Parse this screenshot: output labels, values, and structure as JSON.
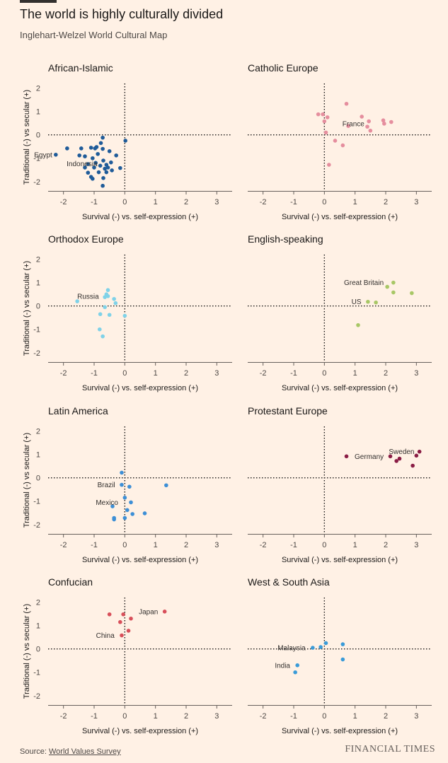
{
  "title": "The world is highly culturally divided",
  "subtitle": "Inglehart-Welzel World Cultural Map",
  "source_label": "Source:",
  "source_link": "World Values Survey",
  "logo": "FINANCIAL TIMES",
  "chart_data": [
    {
      "type": "scatter",
      "title": "African-Islamic",
      "xlabel": "Survival (-) vs. self-expression (+)",
      "ylabel": "Traditional (-) vs secular (+)",
      "xlim": [
        -2.5,
        3.5
      ],
      "ylim": [
        -2.4,
        2.2
      ],
      "xticks": [
        -2,
        -1,
        0,
        1,
        2,
        3
      ],
      "yticks": [
        -2,
        -1,
        0,
        1,
        2
      ],
      "color": "#1f5b99",
      "points": [
        [
          0.02,
          -0.25
        ],
        [
          -0.72,
          -0.12
        ],
        [
          -0.78,
          -0.35
        ],
        [
          -0.92,
          -0.52
        ],
        [
          -0.97,
          -0.58
        ],
        [
          -1.1,
          -0.55
        ],
        [
          -1.3,
          -0.92
        ],
        [
          -1.42,
          -0.58
        ],
        [
          -1.48,
          -0.88
        ],
        [
          -1.88,
          -0.58
        ],
        [
          -2.25,
          -0.85
        ],
        [
          -0.28,
          -0.88
        ],
        [
          -0.72,
          -0.6
        ],
        [
          -0.5,
          -0.7
        ],
        [
          -0.88,
          -0.82
        ],
        [
          -1.05,
          -1.0
        ],
        [
          -0.95,
          -1.2
        ],
        [
          -0.7,
          -1.1
        ],
        [
          -0.45,
          -1.18
        ],
        [
          -0.6,
          -1.28
        ],
        [
          -0.8,
          -1.32
        ],
        [
          -1.2,
          -1.25
        ],
        [
          -1.3,
          -1.4
        ],
        [
          -1.0,
          -1.4
        ],
        [
          -0.65,
          -1.45
        ],
        [
          -0.55,
          -1.4
        ],
        [
          -0.42,
          -1.52
        ],
        [
          -0.85,
          -1.6
        ],
        [
          -0.6,
          -1.6
        ],
        [
          -0.15,
          -1.42
        ],
        [
          -1.2,
          -1.62
        ],
        [
          -1.1,
          -1.8
        ],
        [
          -1.05,
          -1.88
        ],
        [
          -0.7,
          -1.85
        ],
        [
          -0.72,
          -2.18
        ]
      ],
      "labels": [
        {
          "text": "Egypt",
          "x": -2.25,
          "y": -0.85,
          "pos": "left"
        },
        {
          "text": "Indonesia",
          "x": -0.78,
          "y": -1.23,
          "pos": "left"
        }
      ]
    },
    {
      "type": "scatter",
      "title": "Catholic Europe",
      "xlabel": "Survival (-) vs. self-expression (+)",
      "ylabel": "",
      "xlim": [
        -2.5,
        3.5
      ],
      "ylim": [
        -2.4,
        2.2
      ],
      "xticks": [
        -2,
        -1,
        0,
        1,
        2,
        3
      ],
      "yticks": [],
      "color": "#e58e9e",
      "points": [
        [
          0.72,
          1.33
        ],
        [
          -0.2,
          0.88
        ],
        [
          -0.05,
          0.88
        ],
        [
          0.1,
          0.75
        ],
        [
          0.0,
          0.58
        ],
        [
          1.22,
          0.78
        ],
        [
          1.45,
          0.58
        ],
        [
          1.92,
          0.62
        ],
        [
          2.18,
          0.55
        ],
        [
          1.95,
          0.48
        ],
        [
          0.78,
          0.38
        ],
        [
          1.4,
          0.35
        ],
        [
          1.5,
          0.18
        ],
        [
          0.05,
          0.1
        ],
        [
          0.35,
          -0.25
        ],
        [
          0.6,
          -0.45
        ],
        [
          0.15,
          -1.28
        ]
      ],
      "labels": [
        {
          "text": "France",
          "x": 1.42,
          "y": 0.48,
          "pos": "left"
        }
      ]
    },
    {
      "type": "scatter",
      "title": "Orthodox Europe",
      "xlabel": "Survival (-) vs. self-expression (+)",
      "ylabel": "Traditional (-) vs secular (+)",
      "xlim": [
        -2.5,
        3.5
      ],
      "ylim": [
        -2.4,
        2.2
      ],
      "xticks": [
        -2,
        -1,
        0,
        1,
        2,
        3
      ],
      "yticks": [
        -2,
        -1,
        0,
        1,
        2
      ],
      "color": "#7fd2e8",
      "points": [
        [
          -0.55,
          0.68
        ],
        [
          -0.6,
          0.5
        ],
        [
          -0.65,
          0.38
        ],
        [
          -0.55,
          0.42
        ],
        [
          -0.35,
          0.3
        ],
        [
          -0.3,
          0.12
        ],
        [
          -1.55,
          0.2
        ],
        [
          -0.65,
          -0.05
        ],
        [
          -0.8,
          -0.35
        ],
        [
          -0.5,
          -0.38
        ],
        [
          0.0,
          -0.42
        ],
        [
          -0.82,
          -1.0
        ],
        [
          -0.72,
          -1.3
        ]
      ],
      "labels": [
        {
          "text": "Russia",
          "x": -0.73,
          "y": 0.42,
          "pos": "left"
        }
      ]
    },
    {
      "type": "scatter",
      "title": "English-speaking",
      "xlabel": "Survival (-) vs. self-expression (+)",
      "ylabel": "",
      "xlim": [
        -2.5,
        3.5
      ],
      "ylim": [
        -2.4,
        2.2
      ],
      "xticks": [
        -2,
        -1,
        0,
        1,
        2,
        3
      ],
      "yticks": [],
      "color": "#a8c766",
      "points": [
        [
          2.25,
          1.0
        ],
        [
          2.05,
          0.82
        ],
        [
          2.25,
          0.58
        ],
        [
          2.85,
          0.55
        ],
        [
          1.42,
          0.18
        ],
        [
          1.68,
          0.15
        ],
        [
          1.1,
          -0.82
        ]
      ],
      "labels": [
        {
          "text": "Great Britain",
          "x": 2.05,
          "y": 1.0,
          "pos": "left"
        },
        {
          "text": "US",
          "x": 1.32,
          "y": 0.18,
          "pos": "left"
        }
      ]
    },
    {
      "type": "scatter",
      "title": "Latin America",
      "xlabel": "Survival (-) vs. self-expression (+)",
      "ylabel": "Traditional (-) vs secular (+)",
      "xlim": [
        -2.5,
        3.5
      ],
      "ylim": [
        -2.4,
        2.2
      ],
      "xticks": [
        -2,
        -1,
        0,
        1,
        2,
        3
      ],
      "yticks": [
        -2,
        -1,
        0,
        1,
        2
      ],
      "color": "#3d8fd6",
      "points": [
        [
          -0.1,
          0.22
        ],
        [
          -0.1,
          -0.3
        ],
        [
          0.15,
          -0.38
        ],
        [
          1.35,
          -0.32
        ],
        [
          0.0,
          -0.85
        ],
        [
          0.2,
          -1.05
        ],
        [
          -0.4,
          -1.22
        ],
        [
          0.08,
          -1.38
        ],
        [
          0.65,
          -1.52
        ],
        [
          0.25,
          -1.55
        ],
        [
          -0.35,
          -1.72
        ],
        [
          0.0,
          -1.72
        ],
        [
          -0.35,
          -1.78
        ]
      ],
      "labels": [
        {
          "text": "Brazil",
          "x": -0.2,
          "y": -0.3,
          "pos": "left"
        },
        {
          "text": "Mexico",
          "x": -0.1,
          "y": -1.05,
          "pos": "left"
        }
      ]
    },
    {
      "type": "scatter",
      "title": "Protestant Europe",
      "xlabel": "Survival (-) vs. self-expression (+)",
      "ylabel": "",
      "xlim": [
        -2.5,
        3.5
      ],
      "ylim": [
        -2.4,
        2.2
      ],
      "xticks": [
        -2,
        -1,
        0,
        1,
        2,
        3
      ],
      "yticks": [],
      "color": "#8a1d45",
      "points": [
        [
          0.72,
          0.92
        ],
        [
          2.15,
          0.92
        ],
        [
          2.45,
          0.82
        ],
        [
          2.35,
          0.72
        ],
        [
          3.1,
          1.12
        ],
        [
          3.0,
          0.95
        ],
        [
          2.88,
          0.52
        ]
      ],
      "labels": [
        {
          "text": "Germany",
          "x": 2.05,
          "y": 0.92,
          "pos": "left"
        },
        {
          "text": "Sweden",
          "x": 3.05,
          "y": 1.12,
          "pos": "left"
        }
      ]
    },
    {
      "type": "scatter",
      "title": "Confucian",
      "xlabel": "Survival (-) vs. self-expression (+)",
      "ylabel": "Traditional (-) vs secular (+)",
      "xlim": [
        -2.5,
        3.5
      ],
      "ylim": [
        -2.4,
        2.2
      ],
      "xticks": [
        -2,
        -1,
        0,
        1,
        2,
        3
      ],
      "yticks": [
        -2,
        -1,
        0,
        1,
        2
      ],
      "color": "#d84f5a",
      "points": [
        [
          1.3,
          1.6
        ],
        [
          -0.5,
          1.48
        ],
        [
          -0.05,
          1.48
        ],
        [
          0.2,
          1.3
        ],
        [
          -0.15,
          1.15
        ],
        [
          0.12,
          0.78
        ],
        [
          -0.1,
          0.58
        ]
      ],
      "labels": [
        {
          "text": "Japan",
          "x": 1.2,
          "y": 1.6,
          "pos": "left"
        },
        {
          "text": "China",
          "x": -0.22,
          "y": 0.58,
          "pos": "left"
        }
      ]
    },
    {
      "type": "scatter",
      "title": "West & South Asia",
      "xlabel": "Survival (-) vs. self-expression (+)",
      "ylabel": "",
      "xlim": [
        -2.5,
        3.5
      ],
      "ylim": [
        -2.4,
        2.2
      ],
      "xticks": [
        -2,
        -1,
        0,
        1,
        2,
        3
      ],
      "yticks": [],
      "color": "#3a9bd8",
      "points": [
        [
          0.05,
          0.25
        ],
        [
          0.6,
          0.2
        ],
        [
          -0.12,
          0.08
        ],
        [
          -0.38,
          0.05
        ],
        [
          0.6,
          -0.45
        ],
        [
          -0.88,
          -0.7
        ],
        [
          -0.95,
          -1.0
        ]
      ],
      "labels": [
        {
          "text": "Malaysia",
          "x": -0.5,
          "y": 0.05,
          "pos": "left"
        },
        {
          "text": "India",
          "x": -1.0,
          "y": -0.7,
          "pos": "left"
        }
      ]
    }
  ]
}
